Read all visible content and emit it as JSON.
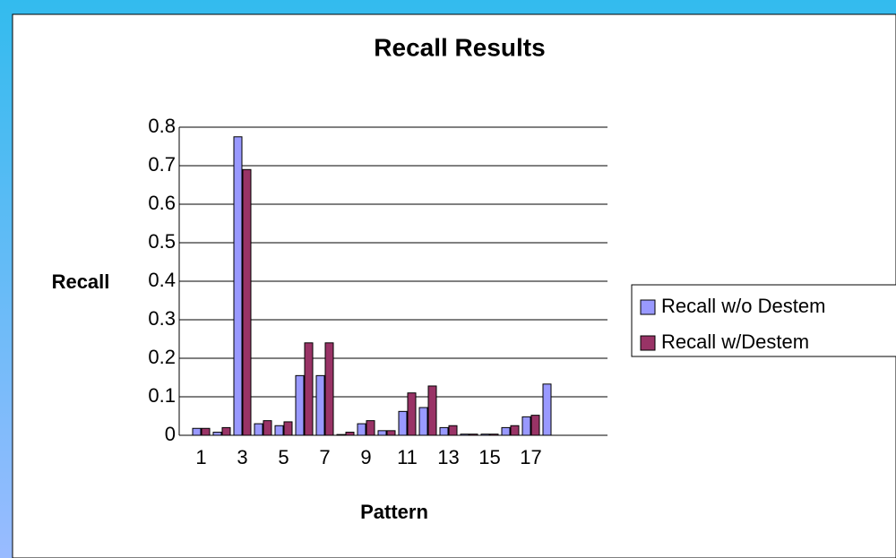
{
  "chart_data": {
    "type": "bar",
    "title": "Recall Results",
    "x_label": "Pattern",
    "y_label": "Recall",
    "categories": [
      "1",
      null,
      "3",
      null,
      "5",
      null,
      "7",
      null,
      "9",
      null,
      "11",
      null,
      "13",
      null,
      "15",
      null,
      "17",
      null
    ],
    "series": [
      {
        "name": "Recall w/o Destem",
        "color": "#9999ff",
        "values": [
          0.018,
          0.008,
          0.775,
          0.03,
          0.025,
          0.155,
          0.155,
          0.002,
          0.03,
          0.012,
          0.062,
          0.072,
          0.02,
          0.003,
          0.003,
          0.02,
          0.048,
          0.133
        ]
      },
      {
        "name": "Recall w/Destem",
        "color": "#993366",
        "values": [
          0.018,
          0.02,
          0.69,
          0.038,
          0.035,
          0.24,
          0.24,
          0.008,
          0.038,
          0.012,
          0.11,
          0.128,
          0.025,
          0.003,
          0.003,
          0.025,
          0.052,
          0
        ]
      }
    ],
    "ylim": [
      0,
      0.8
    ],
    "yticks": [
      0,
      0.1,
      0.2,
      0.3,
      0.4,
      0.5,
      0.6,
      0.7,
      0.8
    ],
    "grid": true,
    "legend": "right"
  }
}
